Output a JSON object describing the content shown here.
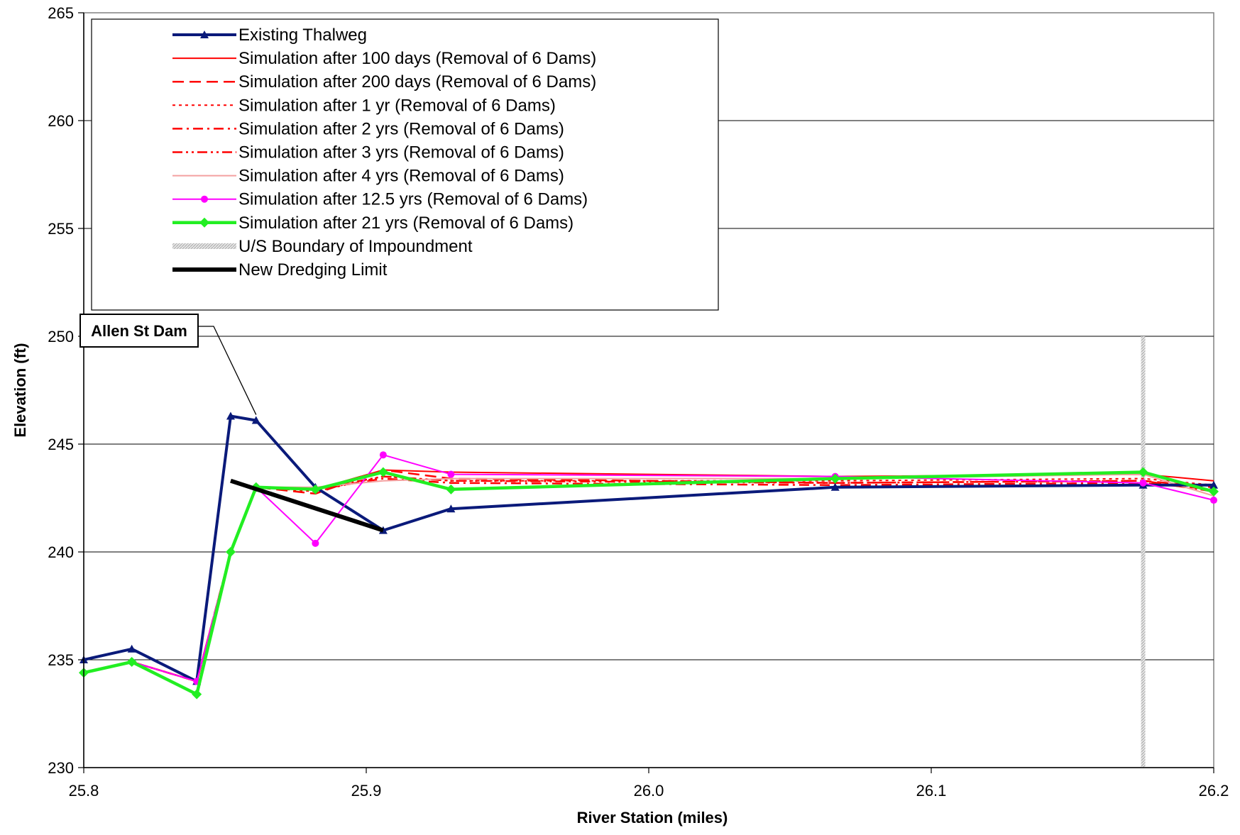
{
  "chart_data": {
    "type": "line",
    "title": "",
    "xlabel": "River Station (miles)",
    "ylabel": "Elevation (ft)",
    "xlim": [
      25.8,
      26.2
    ],
    "ylim": [
      230,
      265
    ],
    "x_ticks": [
      "25.8",
      "25.9",
      "26.0",
      "26.1",
      "26.2"
    ],
    "y_ticks": [
      "230",
      "235",
      "240",
      "245",
      "250",
      "255",
      "260",
      "265"
    ],
    "grid": "horizontal",
    "legend_position": "top-left",
    "annotation": {
      "text": "Allen St Dam",
      "points_to": [
        25.861,
        246.1
      ]
    },
    "series": [
      {
        "name": "Existing Thalweg",
        "color": "#0a1a7a",
        "style": "solid",
        "marker": "triangle",
        "x": [
          25.8,
          25.817,
          25.84,
          25.852,
          25.861,
          25.882,
          25.906,
          25.93,
          26.066,
          26.175,
          26.2
        ],
        "y": [
          235.0,
          235.5,
          234.0,
          246.3,
          246.1,
          243.0,
          241.0,
          242.0,
          243.0,
          243.1,
          243.1
        ]
      },
      {
        "name": "Simulation after 100 days (Removal of 6 Dams)",
        "color": "#ff0000",
        "style": "solid",
        "marker": "none",
        "x": [
          25.8,
          25.817,
          25.84,
          25.852,
          25.861,
          25.882,
          25.906,
          25.93,
          26.066,
          26.175,
          26.2
        ],
        "y": [
          234.4,
          234.9,
          234.0,
          240.0,
          243.0,
          242.9,
          243.8,
          243.7,
          243.5,
          243.6,
          243.3
        ]
      },
      {
        "name": "Simulation after 200 days (Removal of 6 Dams)",
        "color": "#ff0000",
        "style": "dash",
        "marker": "none",
        "x": [
          25.8,
          25.817,
          25.84,
          25.852,
          25.861,
          25.882,
          25.906,
          25.93,
          26.066,
          26.175,
          26.2
        ],
        "y": [
          234.4,
          234.9,
          234.0,
          240.0,
          243.0,
          242.7,
          243.8,
          243.4,
          243.2,
          243.3,
          243.0
        ]
      },
      {
        "name": "Simulation after 1 yr (Removal of 6 Dams)",
        "color": "#ff0000",
        "style": "dot",
        "marker": "none",
        "x": [
          25.8,
          25.817,
          25.84,
          25.852,
          25.861,
          25.882,
          25.906,
          25.93,
          26.066,
          26.175,
          26.2
        ],
        "y": [
          234.4,
          234.9,
          234.0,
          240.0,
          243.0,
          242.8,
          243.5,
          243.3,
          243.3,
          243.4,
          243.1
        ]
      },
      {
        "name": "Simulation after 2 yrs (Removal of 6 Dams)",
        "color": "#ff0000",
        "style": "dashdot",
        "marker": "none",
        "x": [
          25.8,
          25.817,
          25.84,
          25.852,
          25.861,
          25.882,
          25.906,
          25.93,
          26.066,
          26.175,
          26.2
        ],
        "y": [
          234.4,
          234.9,
          234.0,
          240.0,
          243.0,
          242.9,
          243.4,
          243.2,
          243.1,
          243.2,
          242.9
        ]
      },
      {
        "name": "Simulation after 3 yrs (Removal of 6 Dams)",
        "color": "#ff0000",
        "style": "dashdotdot",
        "marker": "none",
        "x": [
          25.8,
          25.817,
          25.84,
          25.852,
          25.861,
          25.882,
          25.906,
          25.93,
          26.066,
          26.175,
          26.2
        ],
        "y": [
          234.4,
          234.9,
          234.0,
          240.0,
          243.0,
          242.9,
          243.5,
          243.3,
          243.2,
          243.3,
          242.8
        ]
      },
      {
        "name": "Simulation after 4 yrs (Removal of 6 Dams)",
        "color": "#f4a0a0",
        "style": "solid",
        "marker": "none",
        "x": [
          25.8,
          25.817,
          25.84,
          25.852,
          25.861,
          25.882,
          25.906,
          25.93,
          26.066,
          26.175,
          26.2
        ],
        "y": [
          234.4,
          234.9,
          234.0,
          240.0,
          243.0,
          243.0,
          243.3,
          243.4,
          243.4,
          243.6,
          242.6
        ]
      },
      {
        "name": "Simulation after 12.5 yrs (Removal of 6 Dams)",
        "color": "#ff00ff",
        "style": "solid",
        "marker": "circle",
        "x": [
          25.8,
          25.817,
          25.84,
          25.852,
          25.861,
          25.882,
          25.906,
          25.93,
          26.066,
          26.175,
          26.2
        ],
        "y": [
          234.4,
          234.9,
          234.0,
          240.0,
          243.0,
          240.4,
          244.5,
          243.6,
          243.5,
          243.2,
          242.4
        ]
      },
      {
        "name": "Simulation after 21 yrs (Removal of 6 Dams)",
        "color": "#22ee22",
        "style": "solid",
        "marker": "diamond",
        "x": [
          25.8,
          25.817,
          25.84,
          25.852,
          25.861,
          25.882,
          25.906,
          25.93,
          26.066,
          26.175,
          26.2
        ],
        "y": [
          234.4,
          234.9,
          233.4,
          240.0,
          243.0,
          242.9,
          243.7,
          242.9,
          243.4,
          243.7,
          242.8
        ]
      },
      {
        "name": "U/S Boundary of Impoundment",
        "color": "#c8c8c8",
        "style": "hatched",
        "marker": "none",
        "x": [
          26.175,
          26.175
        ],
        "y": [
          230,
          250
        ]
      },
      {
        "name": "New Dredging Limit",
        "color": "#000000",
        "style": "solid",
        "marker": "none",
        "x": [
          25.852,
          25.906
        ],
        "y": [
          243.3,
          241.0
        ]
      }
    ]
  }
}
